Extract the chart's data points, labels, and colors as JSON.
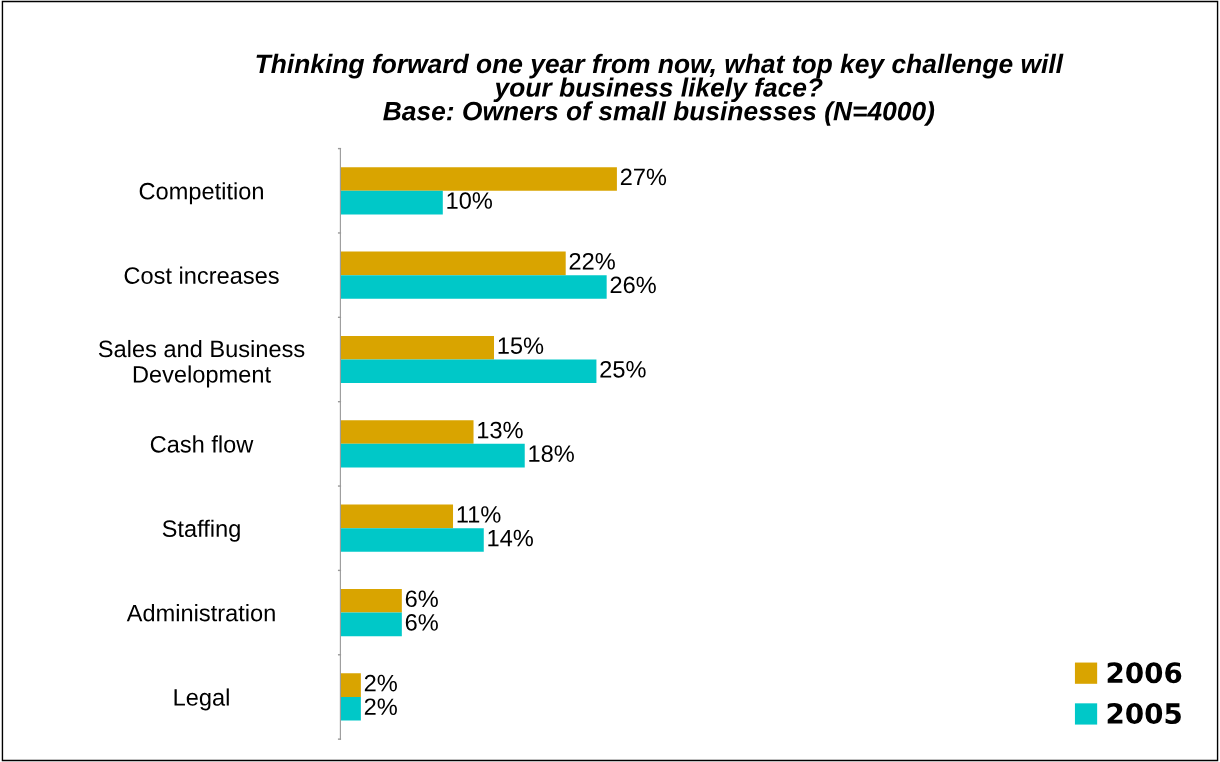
{
  "chart_data": {
    "type": "bar",
    "orientation": "horizontal",
    "title": "Thinking forward one year from now, what top key challenge will\nyour business likely face?\nBase: Owners of small businesses (N=4000)",
    "categories": [
      "Competition",
      "Cost increases",
      "Sales and Business\nDevelopment",
      "Cash flow",
      "Staffing",
      "Administration",
      "Legal"
    ],
    "series": [
      {
        "name": "2006",
        "color": "#d9a400",
        "values": [
          27,
          22,
          15,
          13,
          11,
          6,
          2
        ],
        "value_labels": [
          "27%",
          "22%",
          "15%",
          "13%",
          "11%",
          "6%",
          "2%"
        ]
      },
      {
        "name": "2005",
        "color": "#00c8c8",
        "values": [
          10,
          26,
          25,
          18,
          14,
          6,
          2
        ],
        "value_labels": [
          "10%",
          "26%",
          "25%",
          "18%",
          "14%",
          "6%",
          "2%"
        ]
      }
    ],
    "tick_labels": "y",
    "grid": false,
    "legend": "bottom right"
  }
}
